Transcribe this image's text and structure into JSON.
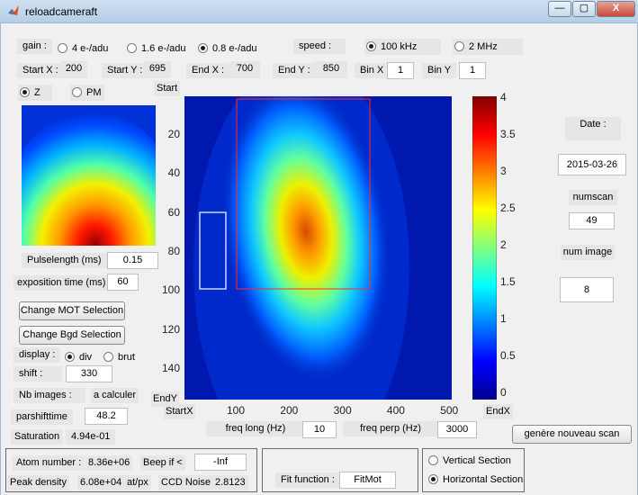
{
  "window": {
    "title": "reloadcameraft",
    "minimize": "—",
    "maximize": "▢",
    "close": "X"
  },
  "gain": {
    "label": "gain :",
    "options": [
      "4 e-/adu",
      "1.6 e-/adu",
      "0.8 e-/adu"
    ],
    "selected": "0.8 e-/adu"
  },
  "speed": {
    "label": "speed :",
    "options": [
      "100 kHz",
      "2 MHz"
    ],
    "selected": "100 kHz"
  },
  "region": {
    "start_x_label": "Start X :",
    "start_x": "200",
    "start_y_label": "Start Y :",
    "start_y": "695",
    "end_x_label": "End X :",
    "end_x": "700",
    "end_y_label": "End Y :",
    "end_y": "850",
    "bin_x_label": "Bin X",
    "bin_x": "1",
    "bin_y_label": "Bin Y",
    "bin_y": "1"
  },
  "mode": {
    "options": [
      "Z",
      "PM"
    ],
    "selected": "Z"
  },
  "params": {
    "pulselength_label": "Pulselength (ms)",
    "pulselength": "0.15",
    "exposition_label": "exposition time (ms)",
    "exposition": "60",
    "change_mot": "Change MOT Selection",
    "change_bgd": "Change Bgd Selection",
    "display_label": "display :",
    "display_options": [
      "div",
      "brut"
    ],
    "display_selected": "div",
    "shift_label": "shift :",
    "shift": "330",
    "nb_images_label": "Nb images :",
    "nb_images": "a calculer",
    "parshift_label": "parshifttime",
    "parshift": "48.2",
    "saturation_label": "Saturation",
    "saturation": "4.94e-01"
  },
  "plot": {
    "start_label": "Start",
    "startx_label": "StartX",
    "endy_label": "EndY",
    "endx_label": "EndX",
    "y_ticks": [
      "20",
      "40",
      "60",
      "80",
      "100",
      "120",
      "140"
    ],
    "x_ticks": [
      "100",
      "200",
      "300",
      "400",
      "500"
    ],
    "colorbar_ticks": [
      "4",
      "3.5",
      "3",
      "2.5",
      "2",
      "1.5",
      "1",
      "0.5",
      "0"
    ],
    "colors": {
      "low": "#00008f",
      "high": "#8f0000",
      "mot_box": "#ff2a2a",
      "bgd_box": "#ffffff"
    }
  },
  "freq": {
    "long_label": "freq long (Hz)",
    "long": "10",
    "perp_label": "freq perp (Hz)",
    "perp": "3000"
  },
  "info": {
    "date_label": "Date :",
    "date": "2015-03-26",
    "numscan_label": "numscan",
    "numscan": "49",
    "numimage_label": "num image",
    "numimage": "8",
    "new_scan": "genère nouveau scan"
  },
  "results": {
    "atom_label": "Atom number :",
    "atom": "8.36e+06",
    "beep_label": "Beep if  <",
    "beep": "-Inf",
    "peak_label": "Peak density",
    "peak": "6.08e+04",
    "peak_unit": "at/px",
    "ccd_label": "CCD Noise",
    "ccd": "2.8123"
  },
  "fit": {
    "label": "Fit function :",
    "value": "FitMot"
  },
  "section": {
    "options": [
      "Vertical Section",
      "Horizontal Section"
    ],
    "selected": "Horizontal Section"
  }
}
